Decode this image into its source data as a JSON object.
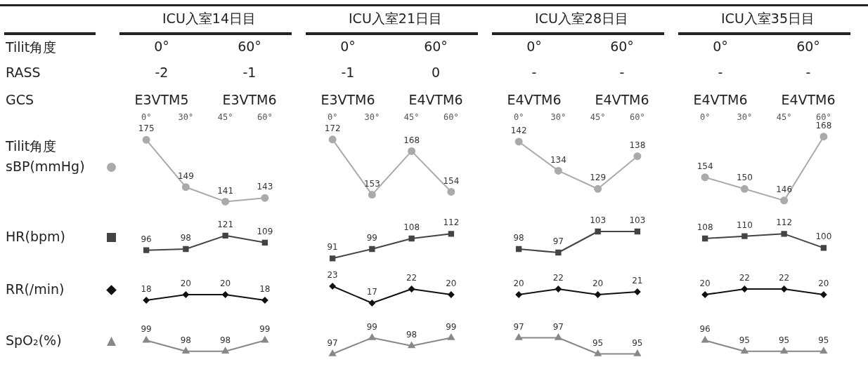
{
  "chart_data": [
    {
      "type": "other",
      "categories": [
        "ICU入室14日目",
        "ICU入室21日目",
        "ICU入室28日目",
        "ICU入室35日目"
      ],
      "y_categories": [
        "Tilit角度",
        "RASS",
        "GCS"
      ],
      "cell_labels": [
        [
          "0°",
          "60°",
          "0°",
          "60°",
          "0°",
          "60°",
          "0°",
          "60°"
        ],
        [
          "-2",
          "-1",
          "-1",
          "0",
          "-",
          "-",
          "-",
          "-"
        ],
        [
          "E3VTM5",
          "E3VTM6",
          "E3VTM6",
          "E4VTM6",
          "E4VTM6",
          "E4VTM6",
          "E4VTM6",
          "E4VTM6"
        ]
      ]
    },
    {
      "type": "line",
      "xlabel": "Tilit角度",
      "categories": [
        "0°",
        "30°",
        "45°",
        "60°"
      ],
      "data_labels": true,
      "series": [
        {
          "name": "sBP(mmHg)",
          "color": "#aaaaaa",
          "marker": "circle",
          "values": [
            175,
            149,
            141,
            143
          ]
        }
      ]
    },
    {
      "type": "line",
      "categories": [
        "0°",
        "30°",
        "45°",
        "60°"
      ],
      "data_labels": true,
      "series": [
        {
          "color": "#aaaaaa",
          "marker": "circle",
          "values": [
            172,
            153,
            168,
            154
          ]
        }
      ]
    },
    {
      "type": "line",
      "categories": [
        "0°",
        "30°",
        "45°",
        "60°"
      ],
      "data_labels": true,
      "series": [
        {
          "color": "#aaaaaa",
          "marker": "circle",
          "values": [
            142,
            134,
            129,
            138
          ]
        }
      ]
    },
    {
      "type": "line",
      "categories": [
        "0°",
        "30°",
        "45°",
        "60°"
      ],
      "data_labels": true,
      "series": [
        {
          "color": "#aaaaaa",
          "marker": "circle",
          "values": [
            154,
            150,
            146,
            168
          ]
        }
      ]
    },
    {
      "type": "line",
      "categories": [
        null,
        null,
        null,
        null
      ],
      "data_labels": true,
      "series": [
        {
          "name": "HR(bpm)",
          "color": "#444444",
          "marker": "square",
          "values": [
            96,
            98,
            121,
            109
          ]
        }
      ]
    },
    {
      "type": "line",
      "categories": [
        null,
        null,
        null,
        null
      ],
      "data_labels": true,
      "series": [
        {
          "color": "#444444",
          "marker": "square",
          "values": [
            91,
            99,
            108,
            112
          ]
        }
      ]
    },
    {
      "type": "line",
      "categories": [
        null,
        null,
        null,
        null
      ],
      "data_labels": true,
      "series": [
        {
          "color": "#444444",
          "marker": "square",
          "values": [
            98,
            97,
            103,
            103
          ]
        }
      ]
    },
    {
      "type": "line",
      "categories": [
        null,
        null,
        null,
        null
      ],
      "data_labels": true,
      "series": [
        {
          "color": "#444444",
          "marker": "square",
          "values": [
            108,
            110,
            112,
            100
          ]
        }
      ]
    },
    {
      "type": "line",
      "categories": [
        null,
        null,
        null,
        null
      ],
      "data_labels": true,
      "series": [
        {
          "name": "RR(/min)",
          "color": "#111111",
          "marker": "diamond",
          "values": [
            18,
            20,
            20,
            18
          ]
        }
      ]
    },
    {
      "type": "line",
      "categories": [
        null,
        null,
        null,
        null
      ],
      "data_labels": true,
      "series": [
        {
          "color": "#111111",
          "marker": "diamond",
          "values": [
            23,
            17,
            22,
            20
          ]
        }
      ]
    },
    {
      "type": "line",
      "categories": [
        null,
        null,
        null,
        null
      ],
      "data_labels": true,
      "series": [
        {
          "color": "#111111",
          "marker": "diamond",
          "values": [
            20,
            22,
            20,
            21
          ]
        }
      ]
    },
    {
      "type": "line",
      "categories": [
        null,
        null,
        null,
        null
      ],
      "data_labels": true,
      "series": [
        {
          "color": "#111111",
          "marker": "diamond",
          "values": [
            20,
            22,
            22,
            20
          ]
        }
      ]
    },
    {
      "type": "line",
      "categories": [
        null,
        null,
        null,
        null
      ],
      "data_labels": true,
      "series": [
        {
          "name": "SpO₂(%)",
          "color": "#888888",
          "marker": "triangle",
          "values": [
            99,
            98,
            98,
            99
          ]
        }
      ]
    },
    {
      "type": "line",
      "categories": [
        null,
        null,
        null,
        null
      ],
      "data_labels": true,
      "series": [
        {
          "color": "#888888",
          "marker": "triangle",
          "values": [
            97,
            99,
            98,
            99
          ]
        }
      ]
    },
    {
      "type": "line",
      "categories": [
        null,
        null,
        null,
        null
      ],
      "data_labels": true,
      "series": [
        {
          "color": "#888888",
          "marker": "triangle",
          "values": [
            97,
            97,
            95,
            95
          ]
        }
      ]
    },
    {
      "type": "line",
      "categories": [
        null,
        null,
        null,
        null
      ],
      "data_labels": true,
      "series": [
        {
          "color": "#888888",
          "marker": "triangle",
          "values": [
            96,
            95,
            95,
            95
          ]
        }
      ]
    }
  ]
}
